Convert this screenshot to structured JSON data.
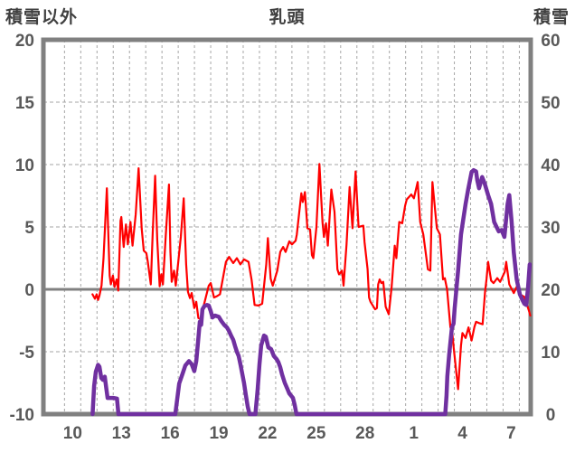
{
  "chart_data": {
    "type": "line",
    "title": "乳頭",
    "left_axis": {
      "title": "積雪以外",
      "min": -10,
      "max": 20,
      "ticks": [
        20,
        15,
        10,
        5,
        0,
        -5,
        -10
      ]
    },
    "right_axis": {
      "title": "積雪",
      "min": 0,
      "max": 60,
      "ticks": [
        60,
        50,
        40,
        30,
        20,
        10,
        0
      ]
    },
    "x_axis": {
      "labels": [
        "10",
        "13",
        "16",
        "19",
        "22",
        "25",
        "28",
        "1",
        "4",
        "7"
      ],
      "label_days": [
        1.8,
        4.8,
        7.8,
        10.8,
        13.8,
        16.8,
        19.8,
        22.8,
        25.8,
        28.8
      ],
      "gridline_first_day": 1.3,
      "gridline_step_days": 1,
      "gridline_count": 29,
      "domain_days": [
        0,
        30
      ]
    },
    "grid": {
      "h_dashed_at": [
        15,
        10,
        5,
        -5
      ],
      "zero_line_at": 0,
      "v_dashed": true
    },
    "colors": {
      "frame": "#808080",
      "grid": "#A6A6A6",
      "zero_line": "#808080",
      "tick_text": "#595959",
      "title_text": "#404040",
      "background": "#FFFFFF",
      "temperature": "#FF0000",
      "snow": "#7030A0"
    },
    "series": [
      {
        "name": "temperature-left-axis",
        "axis": "left",
        "color": "#FF0000",
        "width": 2.2,
        "points": [
          [
            3.02,
            -0.4
          ],
          [
            3.17,
            -0.75
          ],
          [
            3.28,
            -0.4
          ],
          [
            3.37,
            -0.85
          ],
          [
            3.45,
            -0.5
          ],
          [
            3.58,
            0.3
          ],
          [
            3.7,
            2.5
          ],
          [
            3.91,
            8.1
          ],
          [
            4.01,
            4.0
          ],
          [
            4.08,
            1.1
          ],
          [
            4.15,
            0.4
          ],
          [
            4.28,
            1.1
          ],
          [
            4.38,
            0.2
          ],
          [
            4.51,
            0.8
          ],
          [
            4.61,
            -0.1
          ],
          [
            4.75,
            5.5
          ],
          [
            4.8,
            5.8
          ],
          [
            4.94,
            3.4
          ],
          [
            5.08,
            5.2
          ],
          [
            5.2,
            3.6
          ],
          [
            5.36,
            5.4
          ],
          [
            5.49,
            3.5
          ],
          [
            5.68,
            6.0
          ],
          [
            5.86,
            9.7
          ],
          [
            6.05,
            4.9
          ],
          [
            6.18,
            3.1
          ],
          [
            6.34,
            2.9
          ],
          [
            6.43,
            2.2
          ],
          [
            6.61,
            0.4
          ],
          [
            6.73,
            4.5
          ],
          [
            6.88,
            9.1
          ],
          [
            7.01,
            4.0
          ],
          [
            7.16,
            0.25
          ],
          [
            7.26,
            1.2
          ],
          [
            7.36,
            0.4
          ],
          [
            7.54,
            4.5
          ],
          [
            7.73,
            8.4
          ],
          [
            7.82,
            3.0
          ],
          [
            7.9,
            0.6
          ],
          [
            8.04,
            1.5
          ],
          [
            8.15,
            0.3
          ],
          [
            8.29,
            2.0
          ],
          [
            8.46,
            4.2
          ],
          [
            8.64,
            7.3
          ],
          [
            8.79,
            2.0
          ],
          [
            8.9,
            -0.2
          ],
          [
            9.02,
            -0.7
          ],
          [
            9.13,
            -0.3
          ],
          [
            9.29,
            -1.5
          ],
          [
            9.41,
            -1.0
          ],
          [
            9.54,
            -2.3
          ],
          [
            9.68,
            -2.4
          ],
          [
            9.85,
            -1.4
          ],
          [
            10.18,
            0.3
          ],
          [
            10.3,
            0.5
          ],
          [
            10.5,
            -0.65
          ],
          [
            10.68,
            -0.55
          ],
          [
            10.87,
            -0.4
          ],
          [
            11.24,
            2.2
          ],
          [
            11.43,
            2.6
          ],
          [
            11.69,
            2.1
          ],
          [
            11.91,
            2.5
          ],
          [
            12.13,
            2.0
          ],
          [
            12.35,
            2.4
          ],
          [
            12.63,
            2.2
          ],
          [
            12.82,
            0.75
          ],
          [
            13.0,
            -1.25
          ],
          [
            13.24,
            -1.3
          ],
          [
            13.47,
            -1.15
          ],
          [
            13.72,
            2.0
          ],
          [
            13.82,
            4.1
          ],
          [
            13.99,
            0.85
          ],
          [
            14.12,
            0.3
          ],
          [
            14.4,
            1.5
          ],
          [
            14.58,
            3.0
          ],
          [
            14.76,
            3.4
          ],
          [
            14.91,
            3.0
          ],
          [
            15.14,
            3.85
          ],
          [
            15.3,
            3.6
          ],
          [
            15.53,
            3.9
          ],
          [
            15.6,
            4.4
          ],
          [
            15.88,
            7.7
          ],
          [
            15.97,
            7.0
          ],
          [
            16.1,
            7.8
          ],
          [
            16.25,
            4.9
          ],
          [
            16.42,
            4.8
          ],
          [
            16.53,
            2.75
          ],
          [
            16.62,
            2.5
          ],
          [
            16.81,
            5.0
          ],
          [
            16.99,
            10.05
          ],
          [
            17.18,
            5.4
          ],
          [
            17.27,
            4.2
          ],
          [
            17.4,
            5.3
          ],
          [
            17.51,
            3.5
          ],
          [
            17.73,
            8.0
          ],
          [
            17.92,
            6.2
          ],
          [
            18.1,
            1.6
          ],
          [
            18.2,
            1.2
          ],
          [
            18.38,
            1.5
          ],
          [
            18.48,
            0.3
          ],
          [
            18.66,
            3.6
          ],
          [
            18.85,
            8.2
          ],
          [
            19.03,
            4.9
          ],
          [
            19.22,
            9.45
          ],
          [
            19.4,
            5.0
          ],
          [
            19.7,
            5.1
          ],
          [
            19.77,
            3.8
          ],
          [
            19.96,
            1.6
          ],
          [
            20.05,
            -0.65
          ],
          [
            20.14,
            -1.0
          ],
          [
            20.42,
            -1.6
          ],
          [
            20.53,
            -1.5
          ],
          [
            20.61,
            0.4
          ],
          [
            20.7,
            0.8
          ],
          [
            20.81,
            0.5
          ],
          [
            20.92,
            0.6
          ],
          [
            21.07,
            -1.4
          ],
          [
            21.26,
            -2.0
          ],
          [
            21.44,
            0.2
          ],
          [
            21.63,
            3.5
          ],
          [
            21.73,
            2.5
          ],
          [
            21.91,
            5.4
          ],
          [
            22.09,
            5.3
          ],
          [
            22.27,
            6.7
          ],
          [
            22.37,
            7.2
          ],
          [
            22.65,
            7.6
          ],
          [
            22.81,
            7.3
          ],
          [
            23.04,
            8.6
          ],
          [
            23.2,
            5.4
          ],
          [
            23.39,
            4.4
          ],
          [
            23.67,
            1.6
          ],
          [
            23.82,
            1.5
          ],
          [
            23.95,
            8.6
          ],
          [
            24.22,
            4.9
          ],
          [
            24.41,
            4.4
          ],
          [
            24.6,
            0.8
          ],
          [
            24.71,
            0.9
          ],
          [
            24.85,
            0.0
          ],
          [
            25.06,
            -3.05
          ],
          [
            25.15,
            -3.2
          ],
          [
            25.25,
            -4.6
          ],
          [
            25.53,
            -8.0
          ],
          [
            25.71,
            -4.5
          ],
          [
            25.8,
            -3.5
          ],
          [
            25.99,
            -3.9
          ],
          [
            26.17,
            -3.05
          ],
          [
            26.36,
            -4.1
          ],
          [
            26.54,
            -3.0
          ],
          [
            26.64,
            -2.6
          ],
          [
            26.82,
            -2.7
          ],
          [
            27.04,
            -2.8
          ],
          [
            27.19,
            -0.2
          ],
          [
            27.28,
            0.8
          ],
          [
            27.38,
            2.2
          ],
          [
            27.56,
            0.7
          ],
          [
            27.71,
            0.5
          ],
          [
            27.94,
            0.9
          ],
          [
            28.12,
            0.6
          ],
          [
            28.4,
            1.4
          ],
          [
            28.49,
            2.2
          ],
          [
            28.68,
            0.4
          ],
          [
            28.96,
            -0.3
          ],
          [
            29.14,
            0.2
          ],
          [
            29.33,
            -0.4
          ],
          [
            29.61,
            -0.6
          ],
          [
            29.89,
            -1.7
          ],
          [
            29.97,
            -2.1
          ]
        ]
      },
      {
        "name": "snow-depth-right-axis",
        "axis": "right",
        "color": "#7030A0",
        "width": 4.5,
        "points": [
          [
            3.03,
            0
          ],
          [
            3.12,
            4.5
          ],
          [
            3.23,
            6.8
          ],
          [
            3.37,
            7.9
          ],
          [
            3.45,
            7.6
          ],
          [
            3.56,
            5.8
          ],
          [
            3.67,
            5.5
          ],
          [
            3.78,
            6.0
          ],
          [
            3.87,
            4.2
          ],
          [
            3.95,
            2.6
          ],
          [
            4.28,
            2.6
          ],
          [
            4.53,
            2.5
          ],
          [
            4.62,
            0
          ],
          [
            8.12,
            0
          ],
          [
            8.36,
            4.9
          ],
          [
            8.57,
            6.5
          ],
          [
            8.74,
            7.8
          ],
          [
            8.96,
            8.5
          ],
          [
            9.13,
            8.0
          ],
          [
            9.29,
            6.9
          ],
          [
            9.41,
            8.5
          ],
          [
            9.52,
            11.5
          ],
          [
            9.63,
            14.8
          ],
          [
            9.71,
            14.3
          ],
          [
            9.79,
            16.8
          ],
          [
            9.91,
            17.3
          ],
          [
            10.07,
            17.5
          ],
          [
            10.18,
            17.4
          ],
          [
            10.3,
            16.5
          ],
          [
            10.41,
            15.5
          ],
          [
            10.57,
            15.8
          ],
          [
            10.8,
            15.6
          ],
          [
            10.96,
            14.9
          ],
          [
            11.13,
            14.3
          ],
          [
            11.3,
            13.9
          ],
          [
            11.41,
            13.4
          ],
          [
            11.57,
            12.5
          ],
          [
            11.69,
            11.9
          ],
          [
            11.8,
            10.9
          ],
          [
            11.91,
            10.0
          ],
          [
            12.02,
            9.3
          ],
          [
            12.13,
            8.0
          ],
          [
            12.24,
            6.5
          ],
          [
            12.35,
            5.0
          ],
          [
            12.47,
            3.0
          ],
          [
            12.58,
            1.2
          ],
          [
            12.69,
            0
          ],
          [
            13.05,
            0
          ],
          [
            13.19,
            4.0
          ],
          [
            13.3,
            8.0
          ],
          [
            13.41,
            11.0
          ],
          [
            13.58,
            12.6
          ],
          [
            13.69,
            12.4
          ],
          [
            13.85,
            10.7
          ],
          [
            14.02,
            10.4
          ],
          [
            14.19,
            9.3
          ],
          [
            14.36,
            8.8
          ],
          [
            14.47,
            8.3
          ],
          [
            14.58,
            7.5
          ],
          [
            14.69,
            6.4
          ],
          [
            14.86,
            5.0
          ],
          [
            15.03,
            4.0
          ],
          [
            15.14,
            3.3
          ],
          [
            15.36,
            2.6
          ],
          [
            15.47,
            1.5
          ],
          [
            15.58,
            0
          ],
          [
            24.74,
            0
          ],
          [
            24.82,
            3.0
          ],
          [
            24.87,
            6.1
          ],
          [
            24.98,
            9.5
          ],
          [
            25.15,
            13.9
          ],
          [
            25.25,
            14.5
          ],
          [
            25.32,
            17.0
          ],
          [
            25.53,
            23.0
          ],
          [
            25.71,
            28.8
          ],
          [
            25.99,
            33.7
          ],
          [
            26.15,
            36.0
          ],
          [
            26.36,
            38.8
          ],
          [
            26.49,
            39.1
          ],
          [
            26.64,
            38.9
          ],
          [
            26.71,
            37.5
          ],
          [
            26.82,
            36.2
          ],
          [
            27.01,
            38.0
          ],
          [
            27.16,
            37.0
          ],
          [
            27.38,
            35.1
          ],
          [
            27.56,
            33.7
          ],
          [
            27.75,
            30.8
          ],
          [
            28.03,
            29.3
          ],
          [
            28.21,
            29.5
          ],
          [
            28.38,
            28.4
          ],
          [
            28.58,
            33.7
          ],
          [
            28.68,
            35.1
          ],
          [
            28.82,
            31.0
          ],
          [
            28.96,
            25.9
          ],
          [
            29.14,
            21.6
          ],
          [
            29.33,
            19.2
          ],
          [
            29.49,
            18.3
          ],
          [
            29.61,
            17.7
          ],
          [
            29.72,
            17.5
          ],
          [
            29.83,
            20.0
          ],
          [
            29.94,
            24.0
          ]
        ]
      }
    ]
  }
}
